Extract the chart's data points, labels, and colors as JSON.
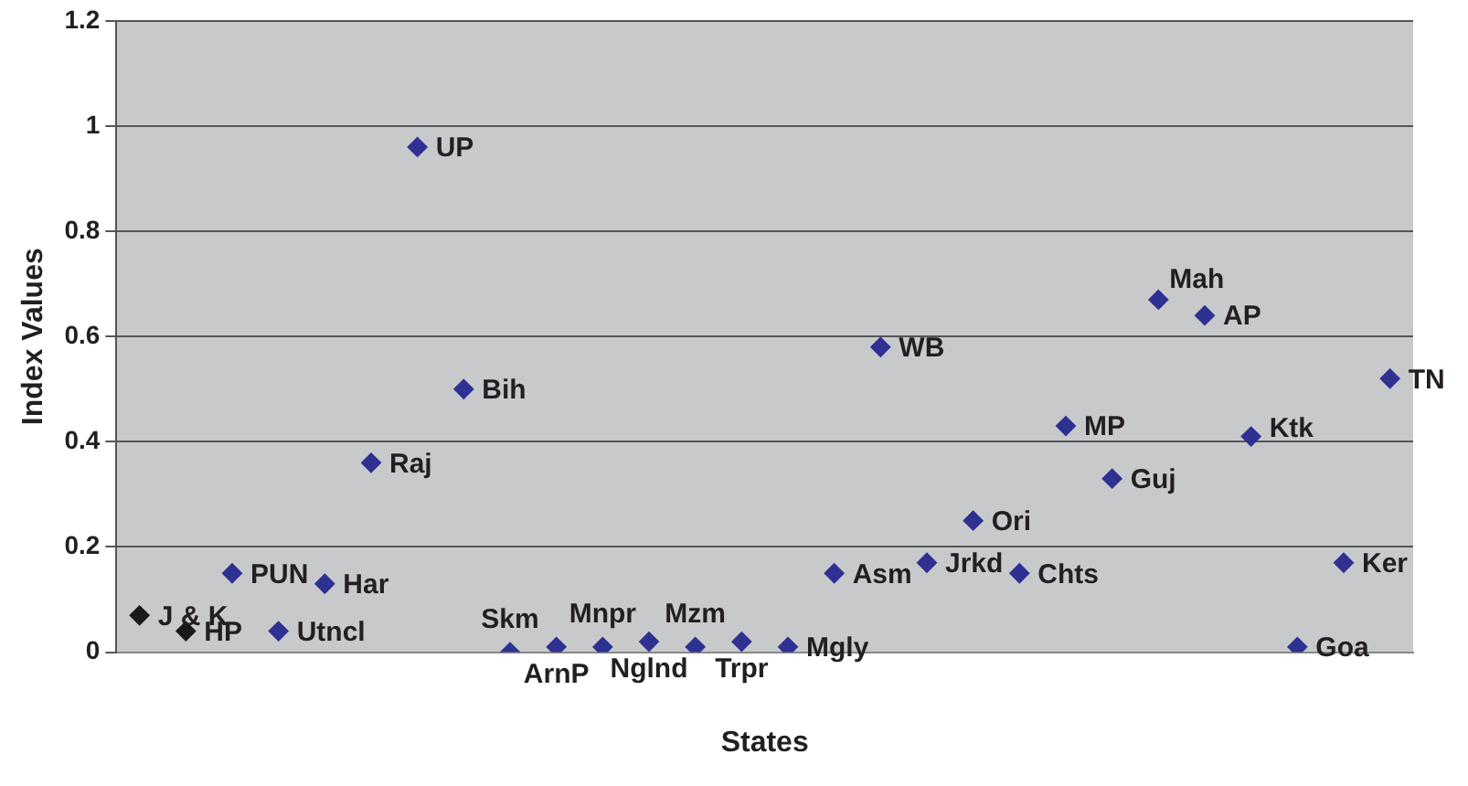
{
  "chart_data": {
    "type": "scatter",
    "xlabel": "States",
    "ylabel": "Index Values",
    "categories": [
      null,
      null,
      null,
      null,
      null,
      null,
      null,
      null,
      null,
      null,
      null,
      null,
      null,
      null,
      null,
      null,
      null,
      null,
      null,
      null,
      null,
      null,
      null,
      null,
      null,
      null,
      null,
      null
    ],
    "values": [
      0.07,
      0.04,
      0.15,
      0.04,
      0.13,
      0.36,
      0.96,
      0.5,
      0,
      0.01,
      0.01,
      0.02,
      0.01,
      0.02,
      0.01,
      0.15,
      0.58,
      0.17,
      0.25,
      0.15,
      0.43,
      0.33,
      0.67,
      0.64,
      0.41,
      0.01,
      0.17,
      0.52
    ],
    "value_labels": [
      "J & K",
      "HP",
      "PUN",
      "Utncl",
      "Har",
      "Raj",
      "UP",
      "Bih",
      "Skm",
      "ArnP",
      "Mnpr",
      "Nglnd",
      "Mzm",
      "Trpr",
      "Mgly",
      "Asm",
      "WB",
      "Jrkd",
      "Ori",
      "Chts",
      "MP",
      "Guj",
      "Mah",
      "AP",
      "Ktk",
      "Goa",
      "Ker",
      "TN"
    ],
    "colors": [
      "#1a1a1a",
      "#1a1a1a",
      "#2e3192",
      "#2e3192",
      "#2e3192",
      "#2e3192",
      "#2e3192",
      "#2e3192",
      "#2e3192",
      "#2e3192",
      "#2e3192",
      "#2e3192",
      "#2e3192",
      "#2e3192",
      "#2e3192",
      "#2e3192",
      "#2e3192",
      "#2e3192",
      "#2e3192",
      "#2e3192",
      "#2e3192",
      "#2e3192",
      "#2e3192",
      "#2e3192",
      "#2e3192",
      "#2e3192",
      "#2e3192",
      "#2e3192"
    ],
    "ylim": [
      0,
      1.2
    ],
    "yticks": [
      0,
      0.2,
      0.4,
      0.6,
      0.8,
      1,
      1.2
    ],
    "grid": "y",
    "marker": "diamond",
    "tick_labels": "y",
    "legend": false
  }
}
